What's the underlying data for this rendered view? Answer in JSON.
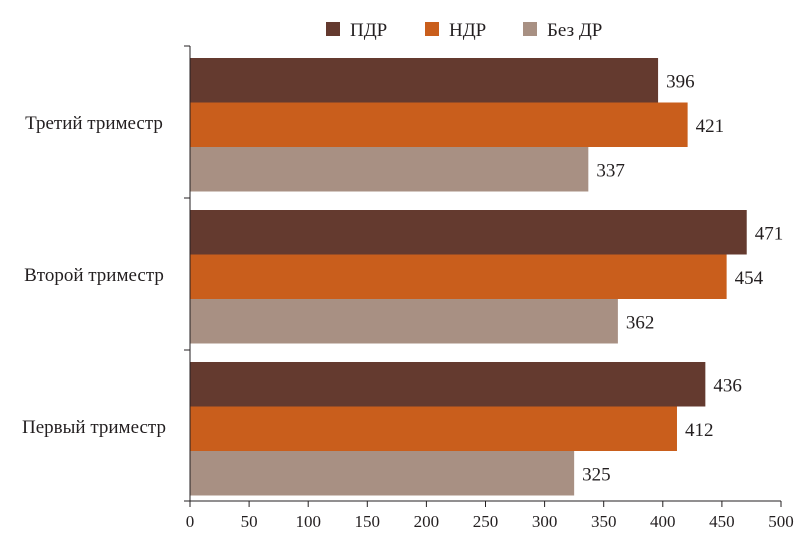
{
  "chart_data": {
    "type": "bar",
    "orientation": "horizontal",
    "categories": [
      "Третий триместр",
      "Второй триместр",
      "Первый триместр"
    ],
    "series": [
      {
        "name": "ПДР",
        "color": "#643a2f",
        "values": [
          396,
          471,
          436
        ]
      },
      {
        "name": "НДР",
        "color": "#c95e1c",
        "values": [
          421,
          454,
          412
        ]
      },
      {
        "name": "Без ДР",
        "color": "#a89083",
        "values": [
          337,
          362,
          325
        ]
      }
    ],
    "xlim": [
      0,
      500
    ],
    "xticks": [
      0,
      50,
      100,
      150,
      200,
      250,
      300,
      350,
      400,
      450,
      500
    ],
    "grid": false,
    "legend": "top",
    "title": "",
    "xlabel": "",
    "ylabel": ""
  }
}
